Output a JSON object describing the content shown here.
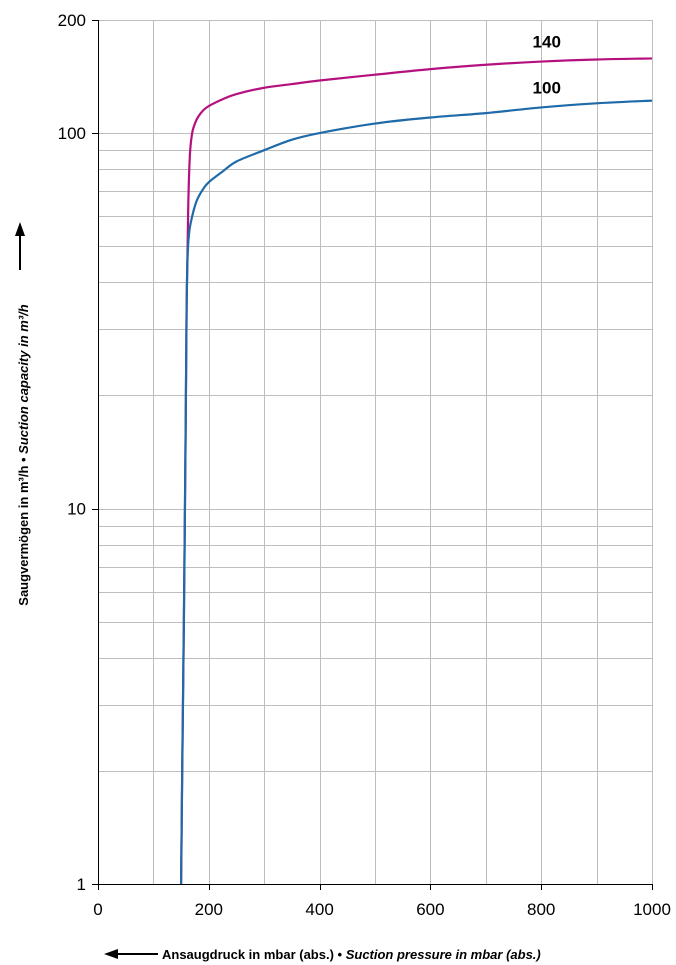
{
  "chart_data": {
    "type": "line",
    "xlabel_main": "Ansaugdruck in mbar (abs.) • ",
    "xlabel_italic": "Suction pressure in mbar (abs.)",
    "ylabel_main": "Saugvermögen in m³/h • ",
    "ylabel_italic": "Suction capacity in m³/h",
    "xlim": [
      0,
      1000
    ],
    "ylim": [
      1,
      200
    ],
    "y_scale": "log",
    "grid": true,
    "x_ticks": [
      "0",
      "200",
      "400",
      "600",
      "800",
      "1000"
    ],
    "y_ticks": [
      "1",
      "10",
      "100",
      "200"
    ],
    "series": [
      {
        "name": "140",
        "color": "#b5117e",
        "x": [
          150,
          152,
          155,
          158,
          160,
          163,
          166,
          170,
          175,
          180,
          190,
          200,
          225,
          250,
          300,
          350,
          400,
          500,
          600,
          700,
          800,
          900,
          1000
        ],
        "y": [
          1,
          2,
          5,
          15,
          35,
          65,
          88,
          100,
          106,
          110,
          115,
          118,
          123,
          127,
          132,
          135,
          138,
          143,
          148,
          152,
          155,
          157,
          158
        ]
      },
      {
        "name": "100",
        "color": "#1f6aa8",
        "x": [
          150,
          152,
          155,
          158,
          160,
          162,
          165,
          170,
          175,
          180,
          190,
          200,
          225,
          250,
          300,
          350,
          400,
          500,
          600,
          700,
          800,
          900,
          1000
        ],
        "y": [
          1,
          2,
          5,
          15,
          35,
          48,
          55,
          60,
          64,
          67,
          71,
          74,
          79,
          84,
          90,
          96,
          100,
          106,
          110,
          113,
          117,
          120,
          122
        ]
      }
    ]
  }
}
